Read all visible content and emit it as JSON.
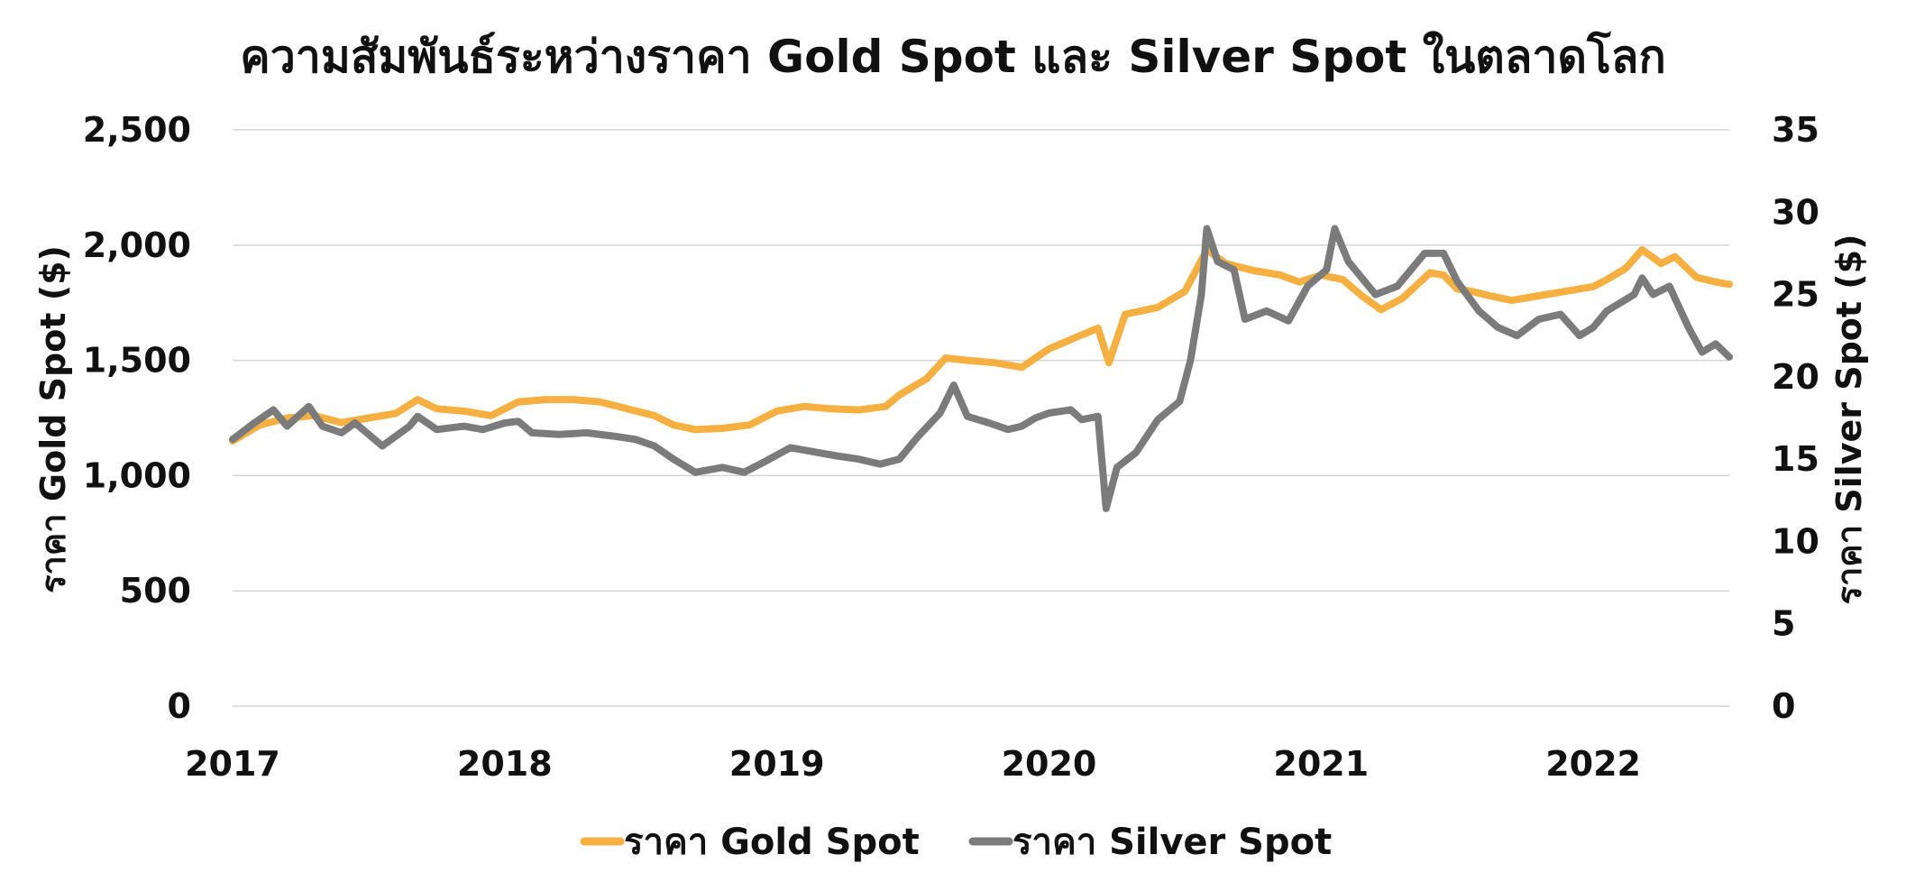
{
  "chart_data": {
    "type": "line",
    "title": "ความสัมพันธ์ระหว่างราคา Gold Spot และ Silver Spot ในตลาดโลก",
    "x_ticks": [
      "2017",
      "2018",
      "2019",
      "2020",
      "2021",
      "2022"
    ],
    "xlim": [
      2017.0,
      2022.5
    ],
    "left_axis": {
      "label": "ราคา Gold Spot ($)",
      "ticks": [
        0,
        500,
        1000,
        1500,
        2000,
        2500
      ],
      "tick_labels": [
        "0",
        "500",
        "1,000",
        "1,500",
        "2,000",
        "2,500"
      ],
      "ylim": [
        0,
        2500
      ]
    },
    "right_axis": {
      "label": "ราคา Silver Spot ($)",
      "ticks": [
        0,
        5,
        10,
        15,
        20,
        25,
        30,
        35
      ],
      "tick_labels": [
        "0",
        "5",
        "10",
        "15",
        "20",
        "25",
        "30",
        "35"
      ],
      "ylim": [
        0,
        35
      ]
    },
    "grid": true,
    "legend_position": "bottom",
    "series": [
      {
        "name": "ราคา Gold Spot",
        "axis": "left",
        "color": "#F5B041",
        "points": [
          [
            2017.0,
            1150
          ],
          [
            2017.1,
            1220
          ],
          [
            2017.2,
            1250
          ],
          [
            2017.3,
            1260
          ],
          [
            2017.4,
            1230
          ],
          [
            2017.5,
            1250
          ],
          [
            2017.6,
            1270
          ],
          [
            2017.68,
            1330
          ],
          [
            2017.75,
            1290
          ],
          [
            2017.85,
            1280
          ],
          [
            2017.95,
            1260
          ],
          [
            2018.05,
            1320
          ],
          [
            2018.15,
            1330
          ],
          [
            2018.25,
            1330
          ],
          [
            2018.35,
            1320
          ],
          [
            2018.45,
            1290
          ],
          [
            2018.55,
            1260
          ],
          [
            2018.62,
            1220
          ],
          [
            2018.7,
            1200
          ],
          [
            2018.8,
            1205
          ],
          [
            2018.9,
            1220
          ],
          [
            2019.0,
            1280
          ],
          [
            2019.1,
            1300
          ],
          [
            2019.2,
            1290
          ],
          [
            2019.3,
            1285
          ],
          [
            2019.4,
            1300
          ],
          [
            2019.45,
            1350
          ],
          [
            2019.55,
            1420
          ],
          [
            2019.62,
            1510
          ],
          [
            2019.7,
            1500
          ],
          [
            2019.8,
            1490
          ],
          [
            2019.9,
            1470
          ],
          [
            2020.0,
            1550
          ],
          [
            2020.1,
            1600
          ],
          [
            2020.18,
            1640
          ],
          [
            2020.22,
            1490
          ],
          [
            2020.28,
            1700
          ],
          [
            2020.4,
            1730
          ],
          [
            2020.5,
            1800
          ],
          [
            2020.58,
            1980
          ],
          [
            2020.65,
            1920
          ],
          [
            2020.75,
            1890
          ],
          [
            2020.85,
            1870
          ],
          [
            2020.92,
            1840
          ],
          [
            2021.0,
            1870
          ],
          [
            2021.08,
            1850
          ],
          [
            2021.15,
            1780
          ],
          [
            2021.22,
            1720
          ],
          [
            2021.3,
            1770
          ],
          [
            2021.4,
            1880
          ],
          [
            2021.45,
            1870
          ],
          [
            2021.5,
            1810
          ],
          [
            2021.55,
            1800
          ],
          [
            2021.62,
            1780
          ],
          [
            2021.7,
            1760
          ],
          [
            2021.8,
            1780
          ],
          [
            2021.9,
            1800
          ],
          [
            2022.0,
            1820
          ],
          [
            2022.05,
            1850
          ],
          [
            2022.12,
            1900
          ],
          [
            2022.18,
            1980
          ],
          [
            2022.25,
            1920
          ],
          [
            2022.3,
            1950
          ],
          [
            2022.38,
            1860
          ],
          [
            2022.45,
            1840
          ],
          [
            2022.5,
            1830
          ]
        ]
      },
      {
        "name": "ราคา Silver Spot",
        "axis": "right",
        "color": "#7B7B7B",
        "points": [
          [
            2017.0,
            16.2
          ],
          [
            2017.08,
            17.2
          ],
          [
            2017.15,
            18.0
          ],
          [
            2017.2,
            17.0
          ],
          [
            2017.28,
            18.2
          ],
          [
            2017.33,
            17.0
          ],
          [
            2017.4,
            16.6
          ],
          [
            2017.45,
            17.2
          ],
          [
            2017.55,
            15.8
          ],
          [
            2017.65,
            17.0
          ],
          [
            2017.68,
            17.6
          ],
          [
            2017.75,
            16.8
          ],
          [
            2017.85,
            17.0
          ],
          [
            2017.92,
            16.8
          ],
          [
            2018.0,
            17.2
          ],
          [
            2018.05,
            17.3
          ],
          [
            2018.1,
            16.6
          ],
          [
            2018.2,
            16.5
          ],
          [
            2018.3,
            16.6
          ],
          [
            2018.4,
            16.4
          ],
          [
            2018.48,
            16.2
          ],
          [
            2018.55,
            15.8
          ],
          [
            2018.62,
            15.0
          ],
          [
            2018.7,
            14.2
          ],
          [
            2018.8,
            14.5
          ],
          [
            2018.88,
            14.2
          ],
          [
            2018.95,
            14.8
          ],
          [
            2019.05,
            15.7
          ],
          [
            2019.15,
            15.4
          ],
          [
            2019.22,
            15.2
          ],
          [
            2019.3,
            15.0
          ],
          [
            2019.38,
            14.7
          ],
          [
            2019.45,
            15.0
          ],
          [
            2019.52,
            16.4
          ],
          [
            2019.6,
            17.8
          ],
          [
            2019.65,
            19.5
          ],
          [
            2019.7,
            17.6
          ],
          [
            2019.78,
            17.2
          ],
          [
            2019.85,
            16.8
          ],
          [
            2019.9,
            17.0
          ],
          [
            2019.95,
            17.5
          ],
          [
            2020.0,
            17.8
          ],
          [
            2020.08,
            18.0
          ],
          [
            2020.12,
            17.4
          ],
          [
            2020.18,
            17.6
          ],
          [
            2020.21,
            12.0
          ],
          [
            2020.25,
            14.5
          ],
          [
            2020.32,
            15.4
          ],
          [
            2020.4,
            17.4
          ],
          [
            2020.48,
            18.5
          ],
          [
            2020.52,
            21.0
          ],
          [
            2020.56,
            25.0
          ],
          [
            2020.58,
            29.0
          ],
          [
            2020.62,
            27.0
          ],
          [
            2020.68,
            26.5
          ],
          [
            2020.72,
            23.5
          ],
          [
            2020.8,
            24.0
          ],
          [
            2020.88,
            23.4
          ],
          [
            2020.95,
            25.5
          ],
          [
            2021.02,
            26.5
          ],
          [
            2021.05,
            29.0
          ],
          [
            2021.1,
            27.0
          ],
          [
            2021.15,
            26.0
          ],
          [
            2021.2,
            25.0
          ],
          [
            2021.28,
            25.5
          ],
          [
            2021.38,
            27.5
          ],
          [
            2021.45,
            27.5
          ],
          [
            2021.5,
            25.8
          ],
          [
            2021.58,
            24.0
          ],
          [
            2021.65,
            23.0
          ],
          [
            2021.72,
            22.5
          ],
          [
            2021.8,
            23.5
          ],
          [
            2021.88,
            23.8
          ],
          [
            2021.95,
            22.5
          ],
          [
            2022.0,
            23.0
          ],
          [
            2022.05,
            24.0
          ],
          [
            2022.15,
            25.0
          ],
          [
            2022.18,
            26.0
          ],
          [
            2022.22,
            25.0
          ],
          [
            2022.28,
            25.5
          ],
          [
            2022.35,
            23.0
          ],
          [
            2022.4,
            21.5
          ],
          [
            2022.45,
            22.0
          ],
          [
            2022.5,
            21.2
          ]
        ]
      }
    ]
  },
  "legend": {
    "items": [
      {
        "label": "ราคา Gold Spot",
        "color": "#F5B041"
      },
      {
        "label": "ราคา Silver Spot",
        "color": "#7B7B7B"
      }
    ]
  }
}
